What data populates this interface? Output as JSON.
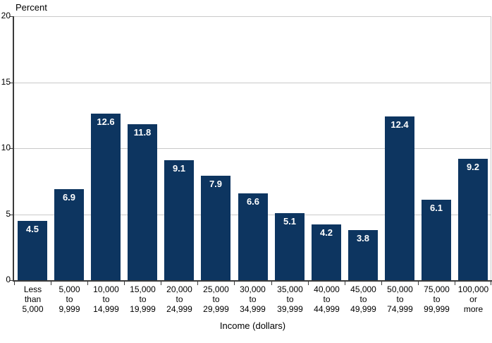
{
  "chart_data": {
    "type": "bar",
    "title": "",
    "ylabel": "Percent",
    "xlabel": "Income (dollars)",
    "ylim": [
      0,
      20
    ],
    "yticks": [
      0,
      5,
      10,
      15,
      20
    ],
    "grid": true,
    "legend_position": "none",
    "categories": [
      "Less\nthan\n5,000",
      "5,000\nto\n9,999",
      "10,000\nto\n14,999",
      "15,000\nto\n19,999",
      "20,000\nto\n24,999",
      "25,000\nto\n29,999",
      "30,000\nto\n34,999",
      "35,000\nto\n39,999",
      "40,000\nto\n44,999",
      "45,000\nto\n49,999",
      "50,000\nto\n74,999",
      "75,000\nto\n99,999",
      "100,000\nor\nmore"
    ],
    "values": [
      4.5,
      6.9,
      12.6,
      11.8,
      9.1,
      7.9,
      6.6,
      5.1,
      4.2,
      3.8,
      12.4,
      6.1,
      9.2
    ],
    "colors": {
      "bar": "#0D3560",
      "value_label": "#FFFFFF",
      "gridline": "#C9C9C9",
      "axis": "#3A3A3A",
      "text": "#000000",
      "background": "#FFFFFF"
    }
  }
}
